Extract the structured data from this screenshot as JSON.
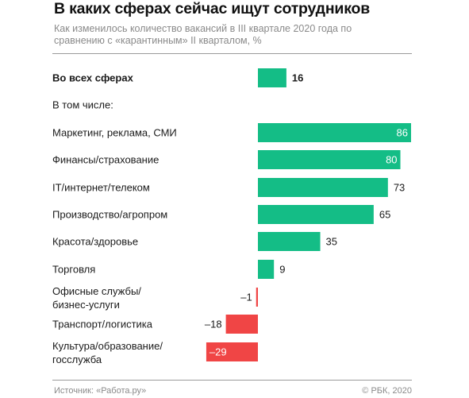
{
  "header": {
    "title": "В каких сферах сейчас ищут сотрудников",
    "subtitle": "Как изменилось количество вакансий в III квартале 2020 года по сравнению с «карантинным» II кварталом, %"
  },
  "chart_data": {
    "type": "bar",
    "orientation": "horizontal",
    "unit": "%",
    "xlim": [
      -29,
      86
    ],
    "grid": false,
    "legend": "none",
    "section_label": "В том числе:",
    "categories": [
      "Во всех сферах",
      "Маркетинг, реклама, СМИ",
      "Финансы/страхование",
      "IT/интернет/телеком",
      "Производство/агропром",
      "Красота/здоровье",
      "Торговля",
      "Офисные службы/ бизнес-услуги",
      "Транспорт/логистика",
      "Культура/образование/ госслужба"
    ],
    "values": [
      16,
      86,
      80,
      73,
      65,
      35,
      9,
      -1,
      -18,
      -29
    ],
    "value_labels": [
      "16",
      "86",
      "80",
      "73",
      "65",
      "35",
      "9",
      "–1",
      "–18",
      "–29"
    ],
    "colors": {
      "positive": "#14bd86",
      "negative": "#f04545"
    }
  },
  "footer": {
    "source": "Источник: «Работа.ру»",
    "copyright": "© РБК, 2020"
  }
}
